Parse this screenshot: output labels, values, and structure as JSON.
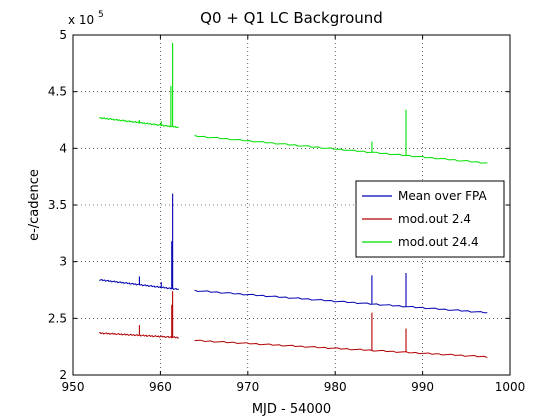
{
  "chart_data": {
    "type": "line",
    "title": "Q0 + Q1 LC Background",
    "xlabel": "MJD - 54000",
    "ylabel": "e-/cadence",
    "y_multiplier_label": {
      "base": "x 10",
      "exponent": "5"
    },
    "xlim": [
      950,
      1000
    ],
    "ylim": [
      2.0,
      5.0
    ],
    "xticks": [
      950,
      960,
      970,
      980,
      990,
      1000
    ],
    "yticks": [
      2,
      2.5,
      3,
      3.5,
      4,
      4.5,
      5
    ],
    "ytick_labels": [
      "2",
      "2.5",
      "3",
      "3.5",
      "4",
      "4.5",
      "5"
    ],
    "grid": true,
    "grid_style": "dotted",
    "legend_position": "right",
    "series": [
      {
        "name": "Mean over FPA",
        "color": "#0000b3",
        "segments": [
          {
            "x_start": 953.0,
            "x_end": 962.1,
            "y_start": 2.84,
            "y_end": 2.755
          },
          {
            "x_start": 963.9,
            "x_end": 997.4,
            "y_start": 2.745,
            "y_end": 2.55
          }
        ],
        "spikes": [
          {
            "x": 957.6,
            "y": 2.87
          },
          {
            "x": 960.1,
            "y": 2.82
          },
          {
            "x": 961.3,
            "y": 3.18
          },
          {
            "x": 961.4,
            "y": 3.6
          },
          {
            "x": 984.2,
            "y": 2.88
          },
          {
            "x": 988.1,
            "y": 2.9
          }
        ]
      },
      {
        "name": "mod.out 2.4",
        "color": "#b30000",
        "segments": [
          {
            "x_start": 953.0,
            "x_end": 962.1,
            "y_start": 2.37,
            "y_end": 2.33
          },
          {
            "x_start": 963.9,
            "x_end": 997.4,
            "y_start": 2.305,
            "y_end": 2.16
          }
        ],
        "spikes": [
          {
            "x": 957.6,
            "y": 2.44
          },
          {
            "x": 961.3,
            "y": 2.62
          },
          {
            "x": 961.4,
            "y": 2.74
          },
          {
            "x": 984.2,
            "y": 2.55
          },
          {
            "x": 988.1,
            "y": 2.41
          }
        ]
      },
      {
        "name": "mod.out 24.4",
        "color": "#00e000",
        "segments": [
          {
            "x_start": 953.0,
            "x_end": 962.1,
            "y_start": 4.27,
            "y_end": 4.185
          },
          {
            "x_start": 963.9,
            "x_end": 997.4,
            "y_start": 4.11,
            "y_end": 3.87
          }
        ],
        "spikes": [
          {
            "x": 957.6,
            "y": 4.25
          },
          {
            "x": 960.1,
            "y": 4.24
          },
          {
            "x": 961.2,
            "y": 4.55
          },
          {
            "x": 961.4,
            "y": 4.93
          },
          {
            "x": 984.2,
            "y": 4.06
          },
          {
            "x": 988.1,
            "y": 4.34
          }
        ]
      }
    ]
  }
}
